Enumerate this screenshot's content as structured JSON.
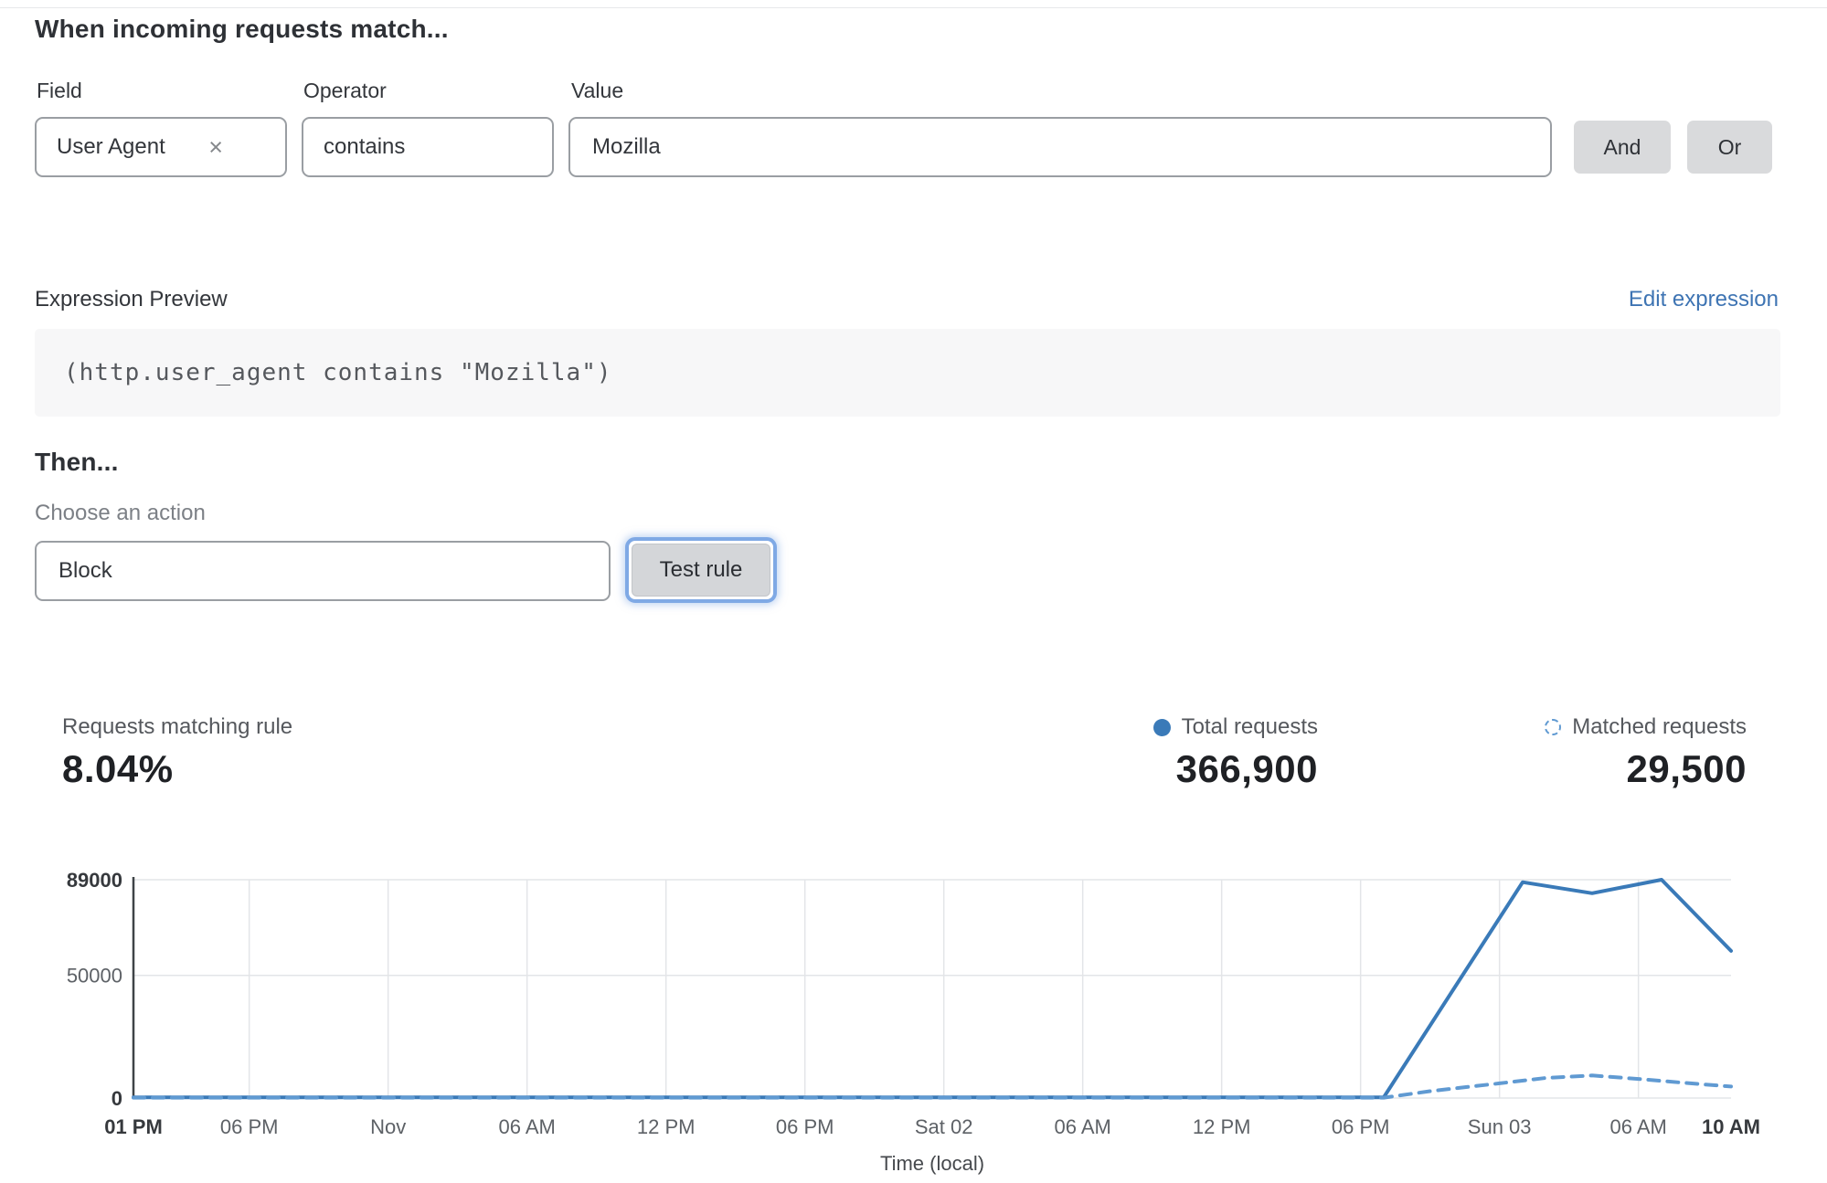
{
  "match_section": {
    "title": "When incoming requests match...",
    "field": {
      "label": "Field",
      "value": "User Agent"
    },
    "operator": {
      "label": "Operator",
      "value": "contains"
    },
    "value": {
      "label": "Value",
      "value": "Mozilla"
    },
    "and_label": "And",
    "or_label": "Or"
  },
  "expression": {
    "label": "Expression Preview",
    "edit_link": "Edit expression",
    "code": "(http.user_agent contains \"Mozilla\")"
  },
  "then_section": {
    "title": "Then...",
    "action_label": "Choose an action",
    "action_value": "Block",
    "test_button": "Test rule"
  },
  "stats": {
    "matching": {
      "label": "Requests matching rule",
      "value": "8.04%"
    },
    "total": {
      "label": "Total requests",
      "value": "366,900"
    },
    "matched": {
      "label": "Matched requests",
      "value": "29,500"
    }
  },
  "colors": {
    "solid_line": "#3a7ab8",
    "dashed_line": "#609ad2",
    "link_blue": "#3e74b3",
    "focus_ring": "#7fa9e5",
    "grid": "#e3e5e8",
    "axis": "#3f4347",
    "tick_regular": "#5d6166",
    "tick_bold": "#36393d"
  },
  "chart_data": {
    "type": "line",
    "title": "",
    "xlabel": "Time (local)",
    "ylabel": "",
    "ylim": [
      0,
      89000
    ],
    "x_hours_total": 69,
    "grid": true,
    "legend_position": "top-right",
    "yticks": [
      {
        "v": 0,
        "label": "0",
        "bold": true
      },
      {
        "v": 50000,
        "label": "50000",
        "bold": false
      },
      {
        "v": 89000,
        "label": "89000",
        "bold": true
      }
    ],
    "xticks": [
      {
        "h": 0,
        "label": "01 PM",
        "bold": true
      },
      {
        "h": 5,
        "label": "06 PM",
        "bold": false
      },
      {
        "h": 11,
        "label": "Nov",
        "bold": false
      },
      {
        "h": 17,
        "label": "06 AM",
        "bold": false
      },
      {
        "h": 23,
        "label": "12 PM",
        "bold": false
      },
      {
        "h": 29,
        "label": "06 PM",
        "bold": false
      },
      {
        "h": 35,
        "label": "Sat 02",
        "bold": false
      },
      {
        "h": 41,
        "label": "06 AM",
        "bold": false
      },
      {
        "h": 47,
        "label": "12 PM",
        "bold": false
      },
      {
        "h": 53,
        "label": "06 PM",
        "bold": false
      },
      {
        "h": 59,
        "label": "Sun 03",
        "bold": false
      },
      {
        "h": 65,
        "label": "06 AM",
        "bold": false
      },
      {
        "h": 69,
        "label": "10 AM",
        "bold": true
      }
    ],
    "series": [
      {
        "name": "Total requests",
        "style": "solid",
        "color": "#3a7ab8",
        "points": [
          [
            0,
            300
          ],
          [
            54,
            300
          ],
          [
            60,
            88000
          ],
          [
            63,
            83500
          ],
          [
            66,
            89000
          ],
          [
            69,
            60000
          ]
        ]
      },
      {
        "name": "Matched requests",
        "style": "dashed",
        "color": "#609ad2",
        "points": [
          [
            0,
            150
          ],
          [
            54,
            150
          ],
          [
            56,
            2800
          ],
          [
            59,
            6000
          ],
          [
            61,
            8200
          ],
          [
            63,
            9200
          ],
          [
            65,
            7800
          ],
          [
            67,
            6200
          ],
          [
            69,
            4700
          ]
        ]
      }
    ]
  }
}
